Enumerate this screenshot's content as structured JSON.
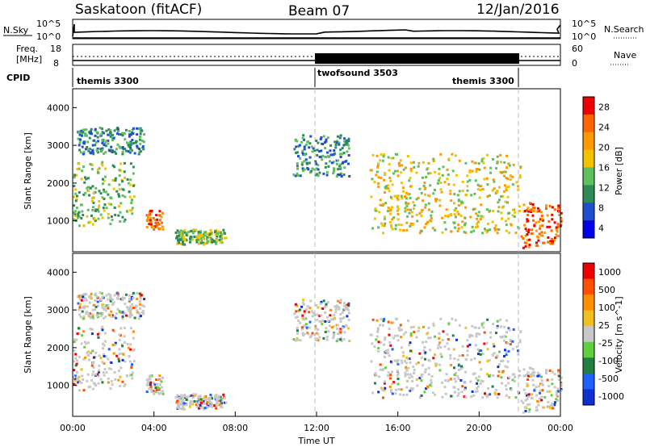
{
  "header": {
    "station": "Saskatoon (fitACF)",
    "beam": "Beam 07",
    "date": "12/Jan/2016"
  },
  "panel_labels": {
    "nsky": "N.Sky",
    "freq_top": "Freq.",
    "freq_unit": "[MHz]",
    "cpid": "CPID",
    "nsearch": "N.Search",
    "nave": "Nave"
  },
  "noise_axis": {
    "left": [
      "10^5",
      "10^0"
    ],
    "right": [
      "10^5",
      "10^0"
    ]
  },
  "freq_axis": {
    "left": [
      "18",
      "8"
    ],
    "right": [
      "60",
      "0"
    ]
  },
  "cpid_segments": [
    {
      "label": "themis 3300",
      "start": 0.0,
      "end": 12.0
    },
    {
      "label": "twofsound 3503",
      "start": 12.0,
      "end": 22.0
    },
    {
      "label": "themis 3300",
      "start": 22.0,
      "end": 24.0
    }
  ],
  "colors": {
    "power": [
      "#0000e8",
      "#1f4ecf",
      "#2e8b57",
      "#5fbf5f",
      "#f2c200",
      "#ff9900",
      "#ff6600",
      "#ee0000"
    ],
    "velocity": [
      "#1030d0",
      "#2060ff",
      "#208040",
      "#60d040",
      "#c8c8c8",
      "#f0c020",
      "#ff9000",
      "#ff5000",
      "#ee0000"
    ],
    "ground_scatter": "#bdbdbd"
  },
  "power_colorbar": {
    "label": "Power [dB]",
    "ticks": [
      "28",
      "24",
      "20",
      "16",
      "12",
      "8",
      "4"
    ]
  },
  "velocity_colorbar": {
    "label": "Velocity [m s^-1]",
    "ticks": [
      "1000",
      "500",
      "100",
      "25",
      "-25",
      "-100",
      "-500",
      "-1000"
    ]
  },
  "chart_data": [
    {
      "type": "heatmap",
      "name": "power",
      "ylabel": "Slant Range [km]",
      "ylim": [
        180,
        4500
      ],
      "yticks": [
        "1000",
        "2000",
        "3000",
        "4000"
      ],
      "xlim": [
        0,
        24
      ],
      "echo_regions": [
        {
          "t0": 0.0,
          "t1": 3.0,
          "r0": 900,
          "r1": 2600,
          "p": 16
        },
        {
          "t0": 0.2,
          "t1": 3.5,
          "r0": 2800,
          "r1": 3500,
          "p": 12
        },
        {
          "t0": 3.6,
          "t1": 4.4,
          "r0": 800,
          "r1": 1300,
          "p": 26
        },
        {
          "t0": 5.0,
          "t1": 7.5,
          "r0": 400,
          "r1": 800,
          "p": 14
        },
        {
          "t0": 10.8,
          "t1": 13.6,
          "r0": 2200,
          "r1": 3300,
          "p": 12
        },
        {
          "t0": 14.6,
          "t1": 22.0,
          "r0": 700,
          "r1": 2800,
          "p": 18
        },
        {
          "t0": 22.0,
          "t1": 24.0,
          "r0": 300,
          "r1": 1500,
          "p": 26
        }
      ]
    },
    {
      "type": "heatmap",
      "name": "velocity",
      "ylabel": "Slant Range [km]",
      "xlabel": "Time UT",
      "ylim": [
        180,
        4500
      ],
      "yticks": [
        "1000",
        "2000",
        "3000",
        "4000"
      ],
      "xlim": [
        0,
        24
      ],
      "xticks": [
        "00:00",
        "04:00",
        "08:00",
        "12:00",
        "16:00",
        "20:00",
        "00:00"
      ]
    }
  ]
}
